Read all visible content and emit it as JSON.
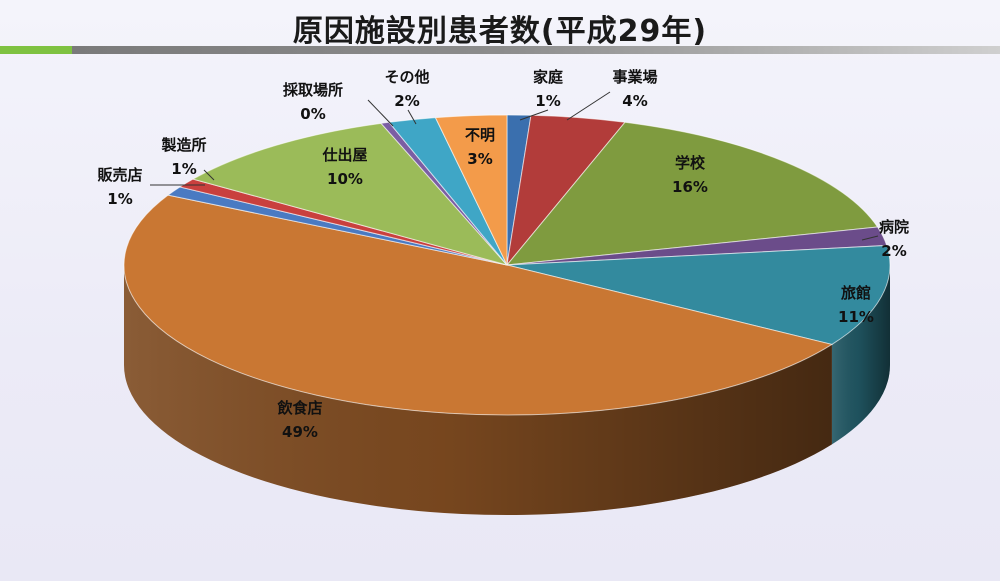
{
  "title": "原因施設別患者数(平成29年)",
  "chart_data": {
    "type": "pie",
    "title": "原因施設別患者数(平成29年)",
    "slices": [
      {
        "name": "家庭",
        "value": 1,
        "label": "1%",
        "color": "#3a6fae"
      },
      {
        "name": "事業場",
        "value": 4,
        "label": "4%",
        "color": "#b23c3a"
      },
      {
        "name": "学校",
        "value": 16,
        "label": "16%",
        "color": "#7f9b3f"
      },
      {
        "name": "病院",
        "value": 2,
        "label": "2%",
        "color": "#6b4c8a"
      },
      {
        "name": "旅館",
        "value": 11,
        "label": "11%",
        "color": "#338a9e"
      },
      {
        "name": "飲食店",
        "value": 49,
        "label": "49%",
        "color": "#c97733"
      },
      {
        "name": "販売店",
        "value": 1,
        "label": "1%",
        "color": "#4a7ac2"
      },
      {
        "name": "製造所",
        "value": 1,
        "label": "1%",
        "color": "#c9403e"
      },
      {
        "name": "仕出屋",
        "value": 10,
        "label": "10%",
        "color": "#9bbb59"
      },
      {
        "name": "採取場所",
        "value": 0,
        "label": "0%",
        "color": "#7b5ea3"
      },
      {
        "name": "その他",
        "value": 2,
        "label": "2%",
        "color": "#3fa6c6"
      },
      {
        "name": "不明",
        "value": 3,
        "label": "3%",
        "color": "#f39b4a"
      }
    ],
    "legend": "none"
  }
}
